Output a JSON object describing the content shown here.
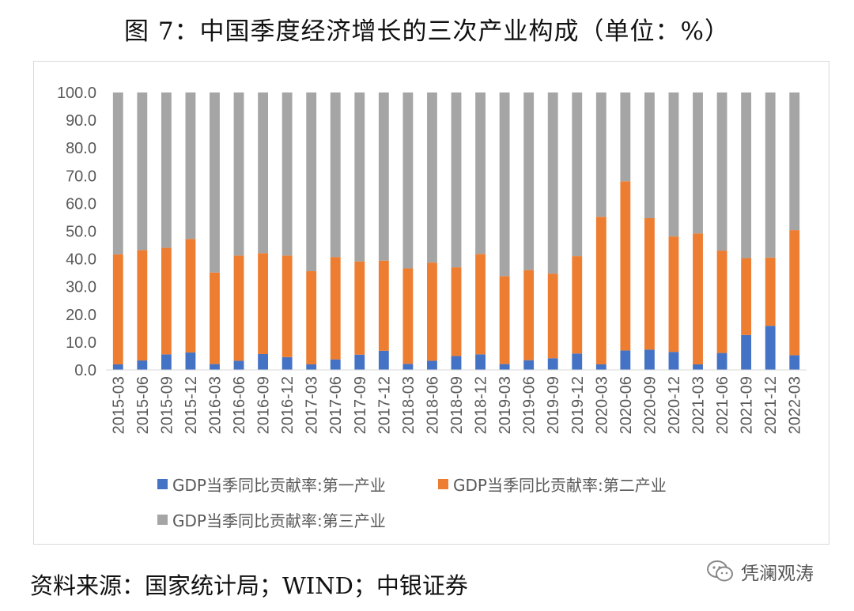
{
  "title": "图 7：中国季度经济增长的三次产业构成（单位：%）",
  "source": "资料来源：国家统计局；WIND；中银证券",
  "watermark": "凭澜观涛",
  "chart_data": {
    "type": "bar",
    "stacked": true,
    "title": "",
    "xlabel": "",
    "ylabel": "",
    "ylim": [
      0,
      100
    ],
    "yticks": [
      "0.0",
      "10.0",
      "20.0",
      "30.0",
      "40.0",
      "50.0",
      "60.0",
      "70.0",
      "80.0",
      "90.0",
      "100.0"
    ],
    "grid": false,
    "legend": "bottom",
    "categories": [
      "2015-03",
      "2015-06",
      "2015-09",
      "2015-12",
      "2016-03",
      "2016-06",
      "2016-09",
      "2016-12",
      "2017-03",
      "2017-06",
      "2017-09",
      "2017-12",
      "2018-03",
      "2018-06",
      "2018-09",
      "2018-12",
      "2019-03",
      "2019-06",
      "2019-09",
      "2019-12",
      "2020-03",
      "2020-06",
      "2020-09",
      "2020-12",
      "2021-03",
      "2021-06",
      "2021-09",
      "2021-12",
      "2022-03"
    ],
    "series": [
      {
        "name": "GDP当季同比贡献率:第一产业",
        "color": "#4472c4",
        "values": [
          2.0,
          3.4,
          5.6,
          6.3,
          2.1,
          3.3,
          5.7,
          4.6,
          2.0,
          3.8,
          5.5,
          6.9,
          2.2,
          3.3,
          5.0,
          5.6,
          2.1,
          3.5,
          4.2,
          5.9,
          2.0,
          7.0,
          7.3,
          6.5,
          2.0,
          6.1,
          12.6,
          15.9,
          5.3
        ]
      },
      {
        "name": "GDP当季同比贡献率:第二产业",
        "color": "#ed7d31",
        "values": [
          39.7,
          39.8,
          38.4,
          40.9,
          33.0,
          37.9,
          36.4,
          36.6,
          33.6,
          36.9,
          33.6,
          32.5,
          34.4,
          35.4,
          32.0,
          36.2,
          31.7,
          32.5,
          30.5,
          35.1,
          53.2,
          61.0,
          47.4,
          41.6,
          47.2,
          36.9,
          27.7,
          24.6,
          45.1
        ]
      },
      {
        "name": "GDP当季同比贡献率:第三产业",
        "color": "#a5a5a5",
        "values": [
          58.3,
          56.8,
          56.0,
          52.8,
          64.9,
          58.8,
          57.9,
          58.8,
          64.4,
          59.3,
          60.9,
          60.6,
          63.4,
          61.3,
          63.0,
          58.2,
          66.2,
          64.0,
          65.3,
          59.0,
          44.8,
          32.0,
          45.3,
          51.9,
          50.8,
          57.0,
          59.7,
          59.5,
          49.6
        ]
      }
    ]
  }
}
